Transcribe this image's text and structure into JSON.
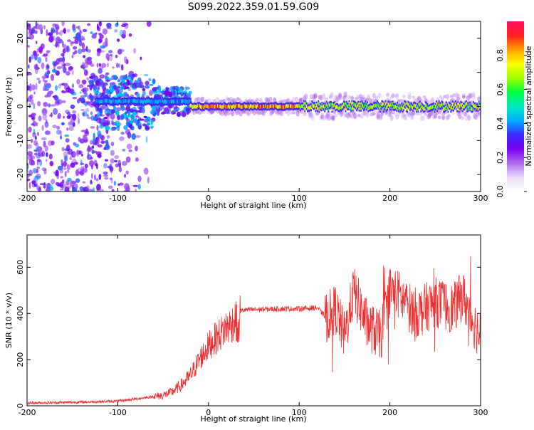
{
  "title": "S099.2022.359.01.59.G09",
  "chart_data": [
    {
      "type": "heatmap",
      "xlabel": "Height of straight line (km)",
      "ylabel": "Frequency (Hz)",
      "xlim": [
        -200,
        300
      ],
      "ylim": [
        -25,
        25
      ],
      "xticks": [
        -200,
        -100,
        0,
        100,
        200,
        300
      ],
      "xtick_labels": [
        "-200",
        "-100",
        "0",
        "100",
        "200",
        "300"
      ],
      "yticks": [
        -20,
        -10,
        0,
        10,
        20
      ],
      "ytick_labels": [
        "-20",
        "-10",
        "0",
        "10",
        "20"
      ],
      "colorbar": {
        "label": "Normalized spectral amplitude",
        "range": [
          0,
          1
        ],
        "ticks": [
          0.0,
          0.2,
          0.4,
          0.6,
          0.8
        ],
        "tick_labels": [
          "0.0",
          "0.2",
          "0.4",
          "0.6",
          "0.8"
        ],
        "colormap": [
          "#ffffff",
          "#e9dcf8",
          "#b06cf0",
          "#7a00f0",
          "#3a2bff",
          "#00b0ff",
          "#00e8c0",
          "#00ff40",
          "#a0ff00",
          "#ffff00",
          "#ffa000",
          "#ff2020",
          "#ff1060"
        ]
      },
      "ridge": {
        "description_free": true,
        "segments": [
          {
            "x": [
              -125,
              -20
            ],
            "freq": 1.5,
            "peak_amplitude": 0.45
          },
          {
            "x": [
              -20,
              100
            ],
            "freq": 0.0,
            "peak_amplitude": 0.9
          },
          {
            "x": [
              100,
              300
            ],
            "freq": 0.0,
            "peak_amplitude": 0.75
          }
        ]
      },
      "noise_region": {
        "x": [
          -200,
          -100
        ],
        "freq_range": [
          -25,
          25
        ]
      }
    },
    {
      "type": "line",
      "xlabel": "Height of straight line (km)",
      "ylabel": "SNR (10 * v/v)",
      "xlim": [
        -200,
        300
      ],
      "ylim": [
        0,
        740
      ],
      "xticks": [
        -200,
        -100,
        0,
        100,
        200,
        300
      ],
      "xtick_labels": [
        "-200",
        "-100",
        "0",
        "100",
        "200",
        "300"
      ],
      "yticks": [
        0,
        200,
        400,
        600
      ],
      "ytick_labels": [
        "0",
        "200",
        "400",
        "600"
      ],
      "color": "#ee3030",
      "x": [
        -200,
        -150,
        -100,
        -70,
        -50,
        -40,
        -30,
        -20,
        -10,
        0,
        10,
        20,
        25,
        30,
        33,
        35,
        40,
        60,
        80,
        100,
        120,
        130,
        140,
        150,
        160,
        175,
        190,
        200,
        210,
        220,
        230,
        250,
        270,
        280,
        290,
        300
      ],
      "y": [
        12,
        15,
        20,
        35,
        45,
        60,
        90,
        130,
        200,
        260,
        300,
        340,
        350,
        380,
        300,
        410,
        415,
        418,
        420,
        420,
        425,
        380,
        420,
        300,
        500,
        350,
        300,
        500,
        480,
        430,
        400,
        450,
        420,
        480,
        380,
        300
      ]
    }
  ]
}
